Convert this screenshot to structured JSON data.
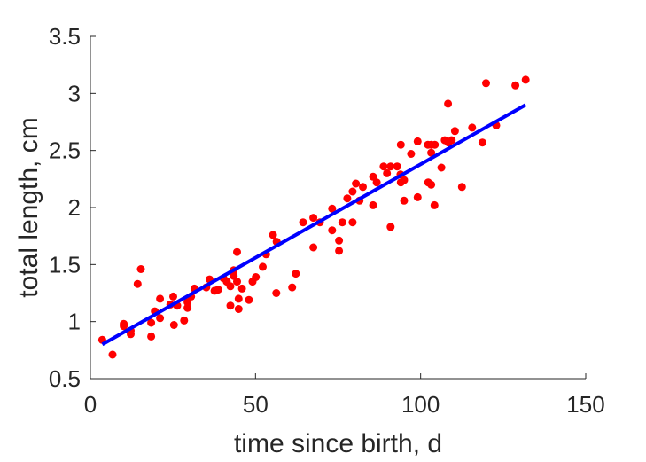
{
  "chart_data": {
    "type": "scatter",
    "xlabel": "time since birth, d",
    "ylabel": "total length, cm",
    "xlim": [
      0,
      150
    ],
    "ylim": [
      0.5,
      3.5
    ],
    "xticks": [
      0,
      50,
      100,
      150
    ],
    "yticks": [
      0.5,
      1,
      1.5,
      2,
      2.5,
      3,
      3.5
    ],
    "xtick_labels": [
      "0",
      "50",
      "100",
      "150"
    ],
    "ytick_labels": [
      "0.5",
      "1",
      "1.5",
      "2",
      "2.5",
      "3",
      "3.5"
    ],
    "grid": false,
    "points_color": "#ff0000",
    "fit_color": "#0000ff",
    "points": [
      [
        3.6,
        0.84
      ],
      [
        6.7,
        0.71
      ],
      [
        10.1,
        0.96
      ],
      [
        10.1,
        0.98
      ],
      [
        12.2,
        0.92
      ],
      [
        12.2,
        0.89
      ],
      [
        14.3,
        1.33
      ],
      [
        15.3,
        1.46
      ],
      [
        18.4,
        0.99
      ],
      [
        18.4,
        0.87
      ],
      [
        19.5,
        1.09
      ],
      [
        21.1,
        1.2
      ],
      [
        21.1,
        1.03
      ],
      [
        24.2,
        1.15
      ],
      [
        25.1,
        1.22
      ],
      [
        25.3,
        0.97
      ],
      [
        26.3,
        1.14
      ],
      [
        28.4,
        1.01
      ],
      [
        29.4,
        1.17
      ],
      [
        29.4,
        1.12
      ],
      [
        30.5,
        1.22
      ],
      [
        31.5,
        1.29
      ],
      [
        35.1,
        1.3
      ],
      [
        36.1,
        1.37
      ],
      [
        37.6,
        1.27
      ],
      [
        38.7,
        1.28
      ],
      [
        40.3,
        1.38
      ],
      [
        41.3,
        1.35
      ],
      [
        42.4,
        1.31
      ],
      [
        42.4,
        1.14
      ],
      [
        43.4,
        1.45
      ],
      [
        43.4,
        1.4
      ],
      [
        44.4,
        1.61
      ],
      [
        44.4,
        1.35
      ],
      [
        44.9,
        1.2
      ],
      [
        44.9,
        1.11
      ],
      [
        45.9,
        1.29
      ],
      [
        48.0,
        1.19
      ],
      [
        49.1,
        1.35
      ],
      [
        50.1,
        1.39
      ],
      [
        52.2,
        1.48
      ],
      [
        53.2,
        1.59
      ],
      [
        55.3,
        1.76
      ],
      [
        56.3,
        1.25
      ],
      [
        56.4,
        1.7
      ],
      [
        61.1,
        1.3
      ],
      [
        62.2,
        1.42
      ],
      [
        64.4,
        1.87
      ],
      [
        67.5,
        1.65
      ],
      [
        67.5,
        1.91
      ],
      [
        69.5,
        1.87
      ],
      [
        73.2,
        1.8
      ],
      [
        73.2,
        1.99
      ],
      [
        75.3,
        1.71
      ],
      [
        75.3,
        1.62
      ],
      [
        76.3,
        1.87
      ],
      [
        77.8,
        2.08
      ],
      [
        79.4,
        1.87
      ],
      [
        79.4,
        2.14
      ],
      [
        80.4,
        2.21
      ],
      [
        81.5,
        2.06
      ],
      [
        82.5,
        2.18
      ],
      [
        85.6,
        2.27
      ],
      [
        85.6,
        2.02
      ],
      [
        86.7,
        2.22
      ],
      [
        88.8,
        2.36
      ],
      [
        89.8,
        2.3
      ],
      [
        90.9,
        1.83
      ],
      [
        90.9,
        2.36
      ],
      [
        92.9,
        2.36
      ],
      [
        93.9,
        2.29
      ],
      [
        94.0,
        2.55
      ],
      [
        94.0,
        2.22
      ],
      [
        95.0,
        2.06
      ],
      [
        95.0,
        2.24
      ],
      [
        97.1,
        2.47
      ],
      [
        99.1,
        2.09
      ],
      [
        99.1,
        2.58
      ],
      [
        102.2,
        2.55
      ],
      [
        102.3,
        2.22
      ],
      [
        103.2,
        2.55
      ],
      [
        103.2,
        2.2
      ],
      [
        103.2,
        2.48
      ],
      [
        104.2,
        2.02
      ],
      [
        104.3,
        2.55
      ],
      [
        106.3,
        2.35
      ],
      [
        107.3,
        2.59
      ],
      [
        108.3,
        2.91
      ],
      [
        108.4,
        2.57
      ],
      [
        109.4,
        2.59
      ],
      [
        110.4,
        2.67
      ],
      [
        112.5,
        2.18
      ],
      [
        115.6,
        2.7
      ],
      [
        118.7,
        2.57
      ],
      [
        119.8,
        3.09
      ],
      [
        122.9,
        2.72
      ],
      [
        128.7,
        3.07
      ],
      [
        131.8,
        3.12
      ]
    ],
    "fit_line": {
      "x": [
        3.6,
        131.8
      ],
      "y": [
        0.8,
        2.9
      ]
    }
  }
}
